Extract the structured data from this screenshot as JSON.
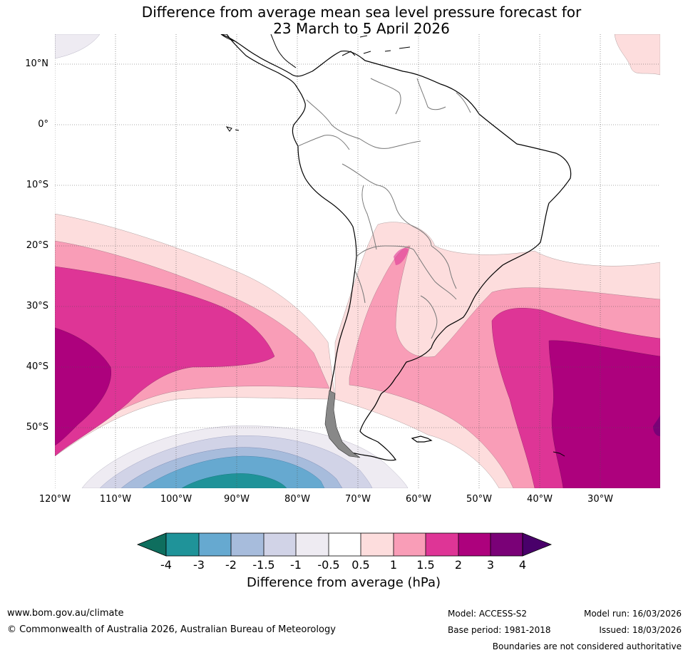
{
  "title": {
    "line1": "Difference from average mean sea level pressure forecast for",
    "line2": "23 March to 5 April 2026"
  },
  "axes": {
    "latitude_labels": [
      "10°N",
      "0°",
      "10°S",
      "20°S",
      "30°S",
      "40°S",
      "50°S"
    ],
    "longitude_labels": [
      "120°W",
      "110°W",
      "100°W",
      "90°W",
      "80°W",
      "70°W",
      "60°W",
      "50°W",
      "40°W",
      "30°W"
    ]
  },
  "colorbar": {
    "labels": [
      "-4",
      "-3",
      "-2",
      "-1.5",
      "-1",
      "-0.5",
      "0.5",
      "1",
      "1.5",
      "2",
      "3",
      "4"
    ],
    "title": "Difference from average (hPa)",
    "colors": {
      "below_-4": "#0e6e5e",
      "-4_-3": "#1f9399",
      "-3_-2": "#66a9d0",
      "-2_-1.5": "#a7bcdc",
      "-1.5_-1": "#d1d3e7",
      "-1_-0.5": "#eeebf2",
      "-0.5_0.5": "#ffffff",
      "0.5_1": "#fddddd",
      "1_1.5": "#f99db7",
      "1.5_2": "#de3596",
      "2_3": "#ad017d",
      "3_4": "#7a0177",
      "above_4": "#49006a"
    }
  },
  "footer": {
    "website": "www.bom.gov.au/climate",
    "copyright": "© Commonwealth of Australia 2026, Australian Bureau of Meteorology",
    "model": "Model: ACCESS-S2",
    "base_period": "Base period: 1981-2018",
    "model_run": "Model run: 16/03/2026",
    "issued": "Issued: 18/03/2026",
    "disclaimer": "Boundaries are not considered authoritative"
  }
}
